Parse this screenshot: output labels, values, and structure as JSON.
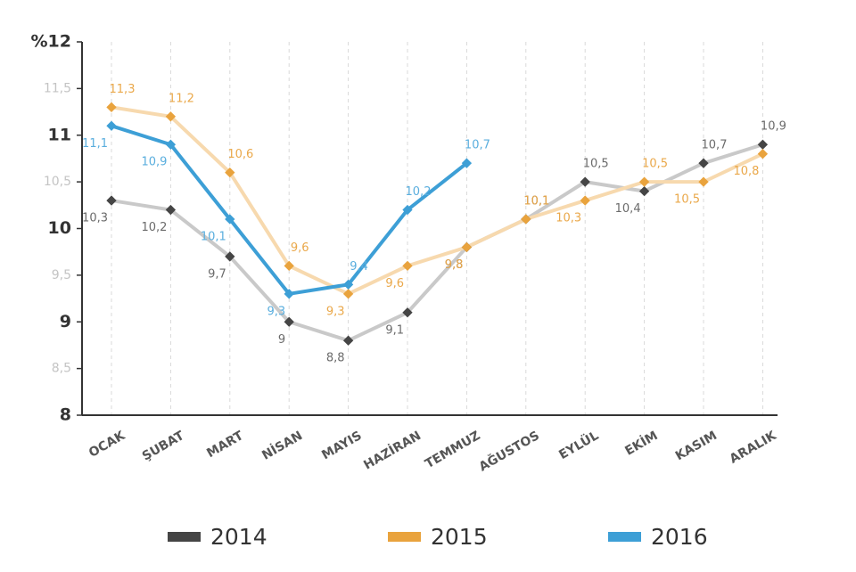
{
  "chart_data": {
    "type": "line",
    "categories": [
      "OCAK",
      "ŞUBAT",
      "MART",
      "NİSAN",
      "MAYIS",
      "HAZİRAN",
      "TEMMUZ",
      "AĞUSTOS",
      "EYLÜL",
      "EKİM",
      "KASIM",
      "ARALIK"
    ],
    "series": [
      {
        "name": "2014",
        "color": "#454545",
        "line_color": "#c9c9c9",
        "label_color": "#6b6b6b",
        "values": [
          10.3,
          10.2,
          9.7,
          9.0,
          8.8,
          9.1,
          9.8,
          10.1,
          10.5,
          10.4,
          10.7,
          10.9
        ],
        "value_labels": [
          "10,3",
          "10,2",
          "9,7",
          "9",
          "8,8",
          "9,1",
          "9,8",
          "10,1",
          "10,5",
          "10,4",
          "10,7",
          "10,9"
        ]
      },
      {
        "name": "2015",
        "color": "#e9a33d",
        "line_color": "#f7d9ae",
        "label_color": "#eaa84a",
        "values": [
          11.3,
          11.2,
          10.6,
          9.6,
          9.3,
          9.6,
          9.8,
          10.1,
          10.3,
          10.5,
          10.5,
          10.8
        ],
        "value_labels": [
          "11,3",
          "11,2",
          "10,6",
          "9,6",
          "9,3",
          "9,6",
          "9,8",
          "10,1",
          "10,3",
          "10,5",
          "10,5",
          "10,8"
        ]
      },
      {
        "name": "2016",
        "color": "#3d9fd6",
        "line_color": "#3d9fd6",
        "label_color": "#5aaede",
        "values": [
          11.1,
          10.9,
          10.1,
          9.3,
          9.4,
          10.2,
          10.7,
          null,
          null,
          null,
          null,
          null
        ],
        "value_labels": [
          "11,1",
          "10,9",
          "10,1",
          "9,3",
          "9,4",
          "10,2",
          "10,7",
          null,
          null,
          null,
          null,
          null
        ]
      }
    ],
    "ylim": [
      8,
      12
    ],
    "yticks": [
      8,
      {
        "value": 8.5,
        "label": "8,5"
      },
      9,
      {
        "value": 9.5,
        "label": "9,5"
      },
      10,
      {
        "value": 10.5,
        "label": "10,5"
      },
      11,
      {
        "value": 11.5,
        "label": "11,5"
      },
      {
        "value": 12,
        "label": "%12"
      }
    ],
    "grid": true
  }
}
